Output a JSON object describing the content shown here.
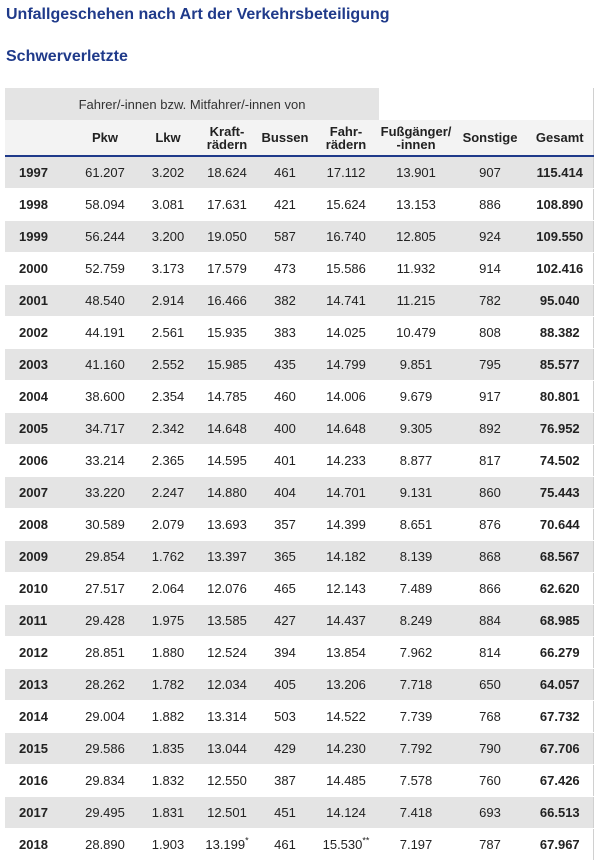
{
  "title": "Unfallgeschehen nach Art der Verkehrsbeteiligung",
  "subtitle": "Schwerverletzte",
  "table": {
    "group_header": "Fahrer/-innen bzw. Mitfahrer/-innen von",
    "columns": [
      {
        "l1": "Pkw",
        "l2": ""
      },
      {
        "l1": "Lkw",
        "l2": ""
      },
      {
        "l1": "Kraft-",
        "l2": "rädern"
      },
      {
        "l1": "Bussen",
        "l2": ""
      },
      {
        "l1": "Fahr-",
        "l2": "rädern"
      },
      {
        "l1": "Fußgänger/",
        "l2": "-innen"
      },
      {
        "l1": "Sonstige",
        "l2": ""
      },
      {
        "l1": "Gesamt",
        "l2": ""
      }
    ],
    "rows": [
      {
        "year": "1997",
        "pkw": "61.207",
        "lkw": "3.202",
        "kraft": "18.624",
        "bus": "461",
        "fahr": "17.112",
        "fuss": "13.901",
        "sonst": "907",
        "total": "115.414"
      },
      {
        "year": "1998",
        "pkw": "58.094",
        "lkw": "3.081",
        "kraft": "17.631",
        "bus": "421",
        "fahr": "15.624",
        "fuss": "13.153",
        "sonst": "886",
        "total": "108.890"
      },
      {
        "year": "1999",
        "pkw": "56.244",
        "lkw": "3.200",
        "kraft": "19.050",
        "bus": "587",
        "fahr": "16.740",
        "fuss": "12.805",
        "sonst": "924",
        "total": "109.550"
      },
      {
        "year": "2000",
        "pkw": "52.759",
        "lkw": "3.173",
        "kraft": "17.579",
        "bus": "473",
        "fahr": "15.586",
        "fuss": "11.932",
        "sonst": "914",
        "total": "102.416"
      },
      {
        "year": "2001",
        "pkw": "48.540",
        "lkw": "2.914",
        "kraft": "16.466",
        "bus": "382",
        "fahr": "14.741",
        "fuss": "11.215",
        "sonst": "782",
        "total": "95.040"
      },
      {
        "year": "2002",
        "pkw": "44.191",
        "lkw": "2.561",
        "kraft": "15.935",
        "bus": "383",
        "fahr": "14.025",
        "fuss": "10.479",
        "sonst": "808",
        "total": "88.382"
      },
      {
        "year": "2003",
        "pkw": "41.160",
        "lkw": "2.552",
        "kraft": "15.985",
        "bus": "435",
        "fahr": "14.799",
        "fuss": "9.851",
        "sonst": "795",
        "total": "85.577"
      },
      {
        "year": "2004",
        "pkw": "38.600",
        "lkw": "2.354",
        "kraft": "14.785",
        "bus": "460",
        "fahr": "14.006",
        "fuss": "9.679",
        "sonst": "917",
        "total": "80.801"
      },
      {
        "year": "2005",
        "pkw": "34.717",
        "lkw": "2.342",
        "kraft": "14.648",
        "bus": "400",
        "fahr": "14.648",
        "fuss": "9.305",
        "sonst": "892",
        "total": "76.952"
      },
      {
        "year": "2006",
        "pkw": "33.214",
        "lkw": "2.365",
        "kraft": "14.595",
        "bus": "401",
        "fahr": "14.233",
        "fuss": "8.877",
        "sonst": "817",
        "total": "74.502"
      },
      {
        "year": "2007",
        "pkw": "33.220",
        "lkw": "2.247",
        "kraft": "14.880",
        "bus": "404",
        "fahr": "14.701",
        "fuss": "9.131",
        "sonst": "860",
        "total": "75.443"
      },
      {
        "year": "2008",
        "pkw": "30.589",
        "lkw": "2.079",
        "kraft": "13.693",
        "bus": "357",
        "fahr": "14.399",
        "fuss": "8.651",
        "sonst": "876",
        "total": "70.644"
      },
      {
        "year": "2009",
        "pkw": "29.854",
        "lkw": "1.762",
        "kraft": "13.397",
        "bus": "365",
        "fahr": "14.182",
        "fuss": "8.139",
        "sonst": "868",
        "total": "68.567"
      },
      {
        "year": "2010",
        "pkw": "27.517",
        "lkw": "2.064",
        "kraft": "12.076",
        "bus": "465",
        "fahr": "12.143",
        "fuss": "7.489",
        "sonst": "866",
        "total": "62.620"
      },
      {
        "year": "2011",
        "pkw": "29.428",
        "lkw": "1.975",
        "kraft": "13.585",
        "bus": "427",
        "fahr": "14.437",
        "fuss": "8.249",
        "sonst": "884",
        "total": "68.985"
      },
      {
        "year": "2012",
        "pkw": "28.851",
        "lkw": "1.880",
        "kraft": "12.524",
        "bus": "394",
        "fahr": "13.854",
        "fuss": "7.962",
        "sonst": "814",
        "total": "66.279"
      },
      {
        "year": "2013",
        "pkw": "28.262",
        "lkw": "1.782",
        "kraft": "12.034",
        "bus": "405",
        "fahr": "13.206",
        "fuss": "7.718",
        "sonst": "650",
        "total": "64.057"
      },
      {
        "year": "2014",
        "pkw": "29.004",
        "lkw": "1.882",
        "kraft": "13.314",
        "bus": "503",
        "fahr": "14.522",
        "fuss": "7.739",
        "sonst": "768",
        "total": "67.732"
      },
      {
        "year": "2015",
        "pkw": "29.586",
        "lkw": "1.835",
        "kraft": "13.044",
        "bus": "429",
        "fahr": "14.230",
        "fuss": "7.792",
        "sonst": "790",
        "total": "67.706"
      },
      {
        "year": "2016",
        "pkw": "29.834",
        "lkw": "1.832",
        "kraft": "12.550",
        "bus": "387",
        "fahr": "14.485",
        "fuss": "7.578",
        "sonst": "760",
        "total": "67.426"
      },
      {
        "year": "2017",
        "pkw": "29.495",
        "lkw": "1.831",
        "kraft": "12.501",
        "bus": "451",
        "fahr": "14.124",
        "fuss": "7.418",
        "sonst": "693",
        "total": "66.513"
      },
      {
        "year": "2018",
        "pkw": "28.890",
        "lkw": "1.903",
        "kraft": "13.199",
        "kraft_note": "*",
        "bus": "461",
        "fahr": "15.530",
        "fahr_note": "**",
        "fuss": "7.197",
        "sonst": "787",
        "total": "67.967"
      }
    ]
  },
  "colors": {
    "heading": "#1f3a8a",
    "row_shade": "#e4e4e4",
    "header_bg": "#f3f3f3",
    "header_rule": "#1f3a8a"
  }
}
